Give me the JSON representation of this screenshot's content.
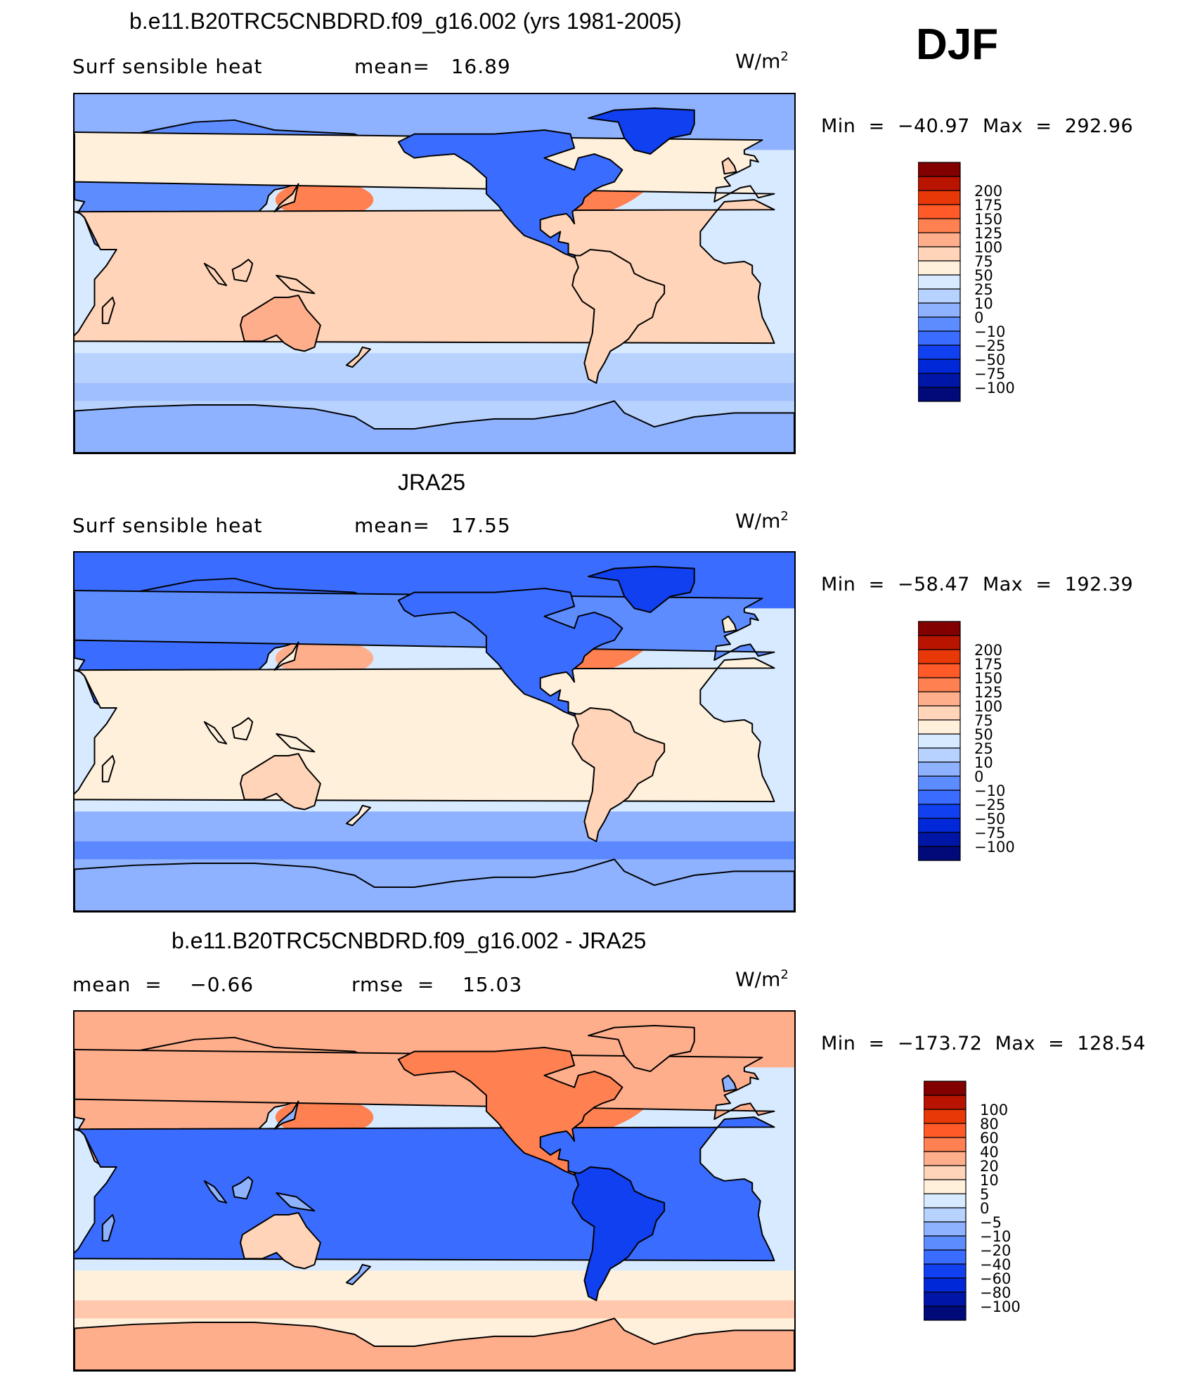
{
  "season": "DJF",
  "panels": [
    {
      "title": "b.e11.B20TRC5CNBDRD.f09_g16.002 (yrs 1981-2005)",
      "left_text": "Surf sensible heat",
      "mid_text": "mean=   16.89",
      "units_base": "W/m",
      "units_exp": "2",
      "minmax": "Min  =  −40.97  Max  =  292.96",
      "field": "model"
    },
    {
      "title": "JRA25",
      "left_text": "Surf sensible heat",
      "mid_text": "mean=   17.55",
      "units_base": "W/m",
      "units_exp": "2",
      "minmax": "Min  =  −58.47  Max  =  192.39",
      "field": "obs"
    },
    {
      "title": "b.e11.B20TRC5CNBDRD.f09_g16.002 - JRA25",
      "left_text": "mean  =    −0.66",
      "mid_text": "rmse  =    15.03",
      "units_base": "W/m",
      "units_exp": "2",
      "minmax": "Min  =  −173.72  Max  =  128.54",
      "field": "diff"
    }
  ],
  "colorbars": {
    "main": {
      "colors": [
        "#000a78",
        "#0016a6",
        "#0028d8",
        "#1040f0",
        "#3a6cff",
        "#5d8cff",
        "#8eb2ff",
        "#b8d2ff",
        "#d8eaff",
        "#fff0dc",
        "#ffd4b8",
        "#ffae8c",
        "#ff8050",
        "#ff5a28",
        "#e83808",
        "#b81400",
        "#820000"
      ],
      "labels": [
        "−100",
        "−75",
        "−50",
        "−25",
        "−10",
        "0",
        "10",
        "25",
        "50",
        "75",
        "100",
        "125",
        "150",
        "175",
        "200"
      ]
    },
    "diff": {
      "colors": [
        "#000a78",
        "#0016a6",
        "#0028d8",
        "#1040f0",
        "#3a6cff",
        "#5d8cff",
        "#8eb2ff",
        "#b8d2ff",
        "#d8eaff",
        "#fff0dc",
        "#ffd4b8",
        "#ffae8c",
        "#ff8050",
        "#ff5a28",
        "#e83808",
        "#b81400",
        "#820000"
      ],
      "labels": [
        "−100",
        "−80",
        "−60",
        "−40",
        "−20",
        "−10",
        "−5",
        "0",
        "5",
        "10",
        "20",
        "40",
        "60",
        "80",
        "100"
      ]
    }
  }
}
